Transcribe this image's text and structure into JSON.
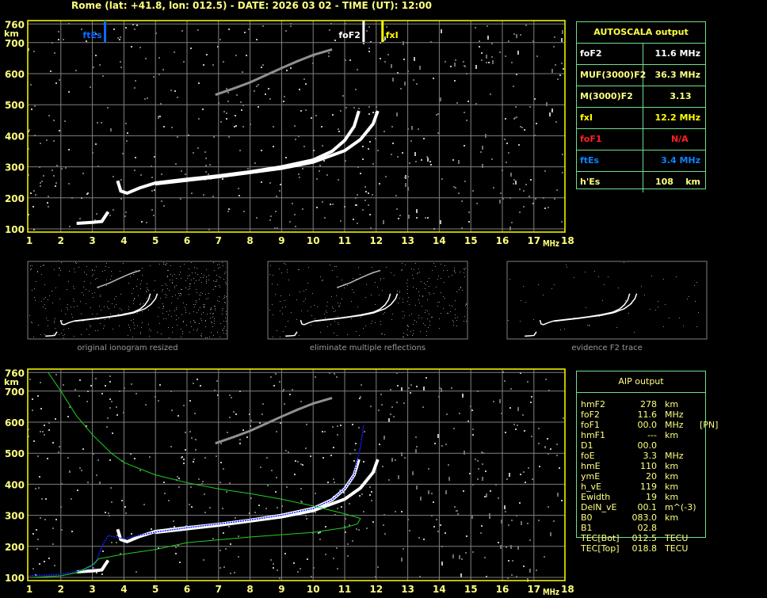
{
  "header": {
    "title": "Rome (lat: +41.8, lon: 012.5) - DATE: 2026 03 02 - TIME (UT): 12:00"
  },
  "colors": {
    "axis": "#ffff00",
    "grid": "#808080",
    "trace": "#ffffff",
    "ftEs": "#0a6cff",
    "foF2": "#ffffff",
    "fxI": "#ffff00",
    "foF1": "#ff2020",
    "profile": "#20d020",
    "aip_trace": "#1020ff",
    "table_border": "#6fe08a"
  },
  "autoscala": {
    "title": "AUTOSCALA output",
    "rows": [
      {
        "label": "foF2",
        "value": "11.6 MHz",
        "color": "#ffffff"
      },
      {
        "label": "MUF(3000)F2",
        "value": "36.3 MHz",
        "color": "#ffff80"
      },
      {
        "label": "M(3000)F2",
        "value": "3.13   ",
        "color": "#ffff80"
      },
      {
        "label": "fxI",
        "value": "12.2 MHz",
        "color": "#ffff00"
      },
      {
        "label": "foF1",
        "value": "N/A    ",
        "color": "#ff2020"
      },
      {
        "label": "ftEs",
        "value": "3.4 MHz",
        "color": "#0a84ff"
      },
      {
        "label": "h'Es",
        "value": "108    km",
        "color": "#ffff80"
      }
    ]
  },
  "aip": {
    "title": "AIP output",
    "rows": [
      {
        "name": "hmF2",
        "value": "278",
        "unit": "km",
        "extra": ""
      },
      {
        "name": "foF2",
        "value": "11.6",
        "unit": "MHz",
        "extra": ""
      },
      {
        "name": "foF1",
        "value": "00.0",
        "unit": "MHz",
        "extra": "[PN]"
      },
      {
        "name": "hmF1",
        "value": "---",
        "unit": "km",
        "extra": ""
      },
      {
        "name": "D1",
        "value": "00.0",
        "unit": "",
        "extra": ""
      },
      {
        "name": "foE",
        "value": "3.3",
        "unit": "MHz",
        "extra": ""
      },
      {
        "name": "hmE",
        "value": "110",
        "unit": "km",
        "extra": ""
      },
      {
        "name": "ymE",
        "value": "20",
        "unit": "km",
        "extra": ""
      },
      {
        "name": "h_vE",
        "value": "119",
        "unit": "km",
        "extra": ""
      },
      {
        "name": "Ewidth",
        "value": "19",
        "unit": "km",
        "extra": ""
      },
      {
        "name": "DelN_vE",
        "value": "00.1",
        "unit": "m^(-3)",
        "extra": ""
      },
      {
        "name": "B0",
        "value": "083.0",
        "unit": "km",
        "extra": ""
      },
      {
        "name": "B1",
        "value": "02.8",
        "unit": "",
        "extra": ""
      },
      {
        "name": "TEC[Bot]",
        "value": "012.5",
        "unit": "TECU",
        "extra": ""
      },
      {
        "name": "TEC[Top]",
        "value": "018.8",
        "unit": "TECU",
        "extra": ""
      }
    ]
  },
  "thumbnails": [
    {
      "label": "original ionogram resized"
    },
    {
      "label": "eliminate multiple reflections"
    },
    {
      "label": "evidence F2 trace"
    }
  ],
  "chart_data": [
    {
      "type": "scatter",
      "xlabel": "MHz",
      "ylabel": "km",
      "xlim": [
        1,
        18
      ],
      "ylim": [
        100,
        760
      ],
      "xticks": [
        "1",
        "2",
        "3",
        "4",
        "5",
        "6",
        "7",
        "8",
        "9",
        "10",
        "11",
        "12",
        "13",
        "14",
        "15",
        "16",
        "17",
        "18"
      ],
      "yticks": [
        "100",
        "200",
        "300",
        "400",
        "500",
        "600",
        "700",
        "760"
      ],
      "grid": true,
      "markers": [
        {
          "label": "ftEs",
          "freq": 3.4,
          "color": "#0a6cff"
        },
        {
          "label": "foF2",
          "freq": 11.6,
          "color": "#ffffff"
        },
        {
          "label": "fxI",
          "freq": 12.2,
          "color": "#ffff00"
        }
      ],
      "series": [
        {
          "kind": "o-trace",
          "points": [
            [
              3.8,
              255
            ],
            [
              3.9,
              222
            ],
            [
              4.1,
              215
            ],
            [
              4.5,
              232
            ],
            [
              5,
              248
            ],
            [
              6,
              260
            ],
            [
              7,
              271
            ],
            [
              8,
              284
            ],
            [
              9,
              300
            ],
            [
              10,
              322
            ],
            [
              10.6,
              350
            ],
            [
              11,
              385
            ],
            [
              11.3,
              430
            ],
            [
              11.45,
              480
            ]
          ]
        },
        {
          "kind": "x-trace",
          "points": [
            [
              5,
              245
            ],
            [
              7,
              268
            ],
            [
              9,
              295
            ],
            [
              10,
              315
            ],
            [
              11,
              352
            ],
            [
              11.5,
              388
            ],
            [
              11.9,
              438
            ],
            [
              12.05,
              480
            ]
          ]
        },
        {
          "kind": "es-trace",
          "points": [
            [
              2.5,
              118
            ],
            [
              3.0,
              121
            ],
            [
              3.3,
              124
            ],
            [
              3.4,
              140
            ],
            [
              3.5,
              155
            ]
          ]
        },
        {
          "kind": "multiple-reflection",
          "points": [
            [
              6.9,
              532
            ],
            [
              7.5,
              553
            ],
            [
              8,
              572
            ],
            [
              8.5,
              595
            ],
            [
              9,
              618
            ],
            [
              9.5,
              640
            ],
            [
              10,
              660
            ],
            [
              10.6,
              678
            ]
          ]
        }
      ]
    },
    {
      "type": "line",
      "xlabel": "MHz",
      "ylabel": "km",
      "xlim": [
        1,
        18
      ],
      "ylim": [
        100,
        760
      ],
      "xticks": [
        "1",
        "2",
        "3",
        "4",
        "5",
        "6",
        "7",
        "8",
        "9",
        "10",
        "11",
        "12",
        "13",
        "14",
        "15",
        "16",
        "17",
        "18"
      ],
      "yticks": [
        "100",
        "200",
        "300",
        "400",
        "500",
        "600",
        "700",
        "760"
      ],
      "grid": true,
      "series": [
        {
          "kind": "o-trace",
          "points": [
            [
              3.8,
              255
            ],
            [
              3.9,
              222
            ],
            [
              4.1,
              215
            ],
            [
              4.5,
              232
            ],
            [
              5,
              248
            ],
            [
              6,
              260
            ],
            [
              7,
              271
            ],
            [
              8,
              284
            ],
            [
              9,
              300
            ],
            [
              10,
              322
            ],
            [
              10.6,
              350
            ],
            [
              11,
              385
            ],
            [
              11.3,
              430
            ],
            [
              11.45,
              480
            ]
          ]
        },
        {
          "kind": "x-trace",
          "points": [
            [
              5,
              245
            ],
            [
              7,
              268
            ],
            [
              9,
              295
            ],
            [
              10,
              315
            ],
            [
              11,
              352
            ],
            [
              11.5,
              388
            ],
            [
              11.9,
              438
            ],
            [
              12.05,
              480
            ]
          ]
        },
        {
          "kind": "es-trace",
          "points": [
            [
              2.5,
              118
            ],
            [
              3.0,
              121
            ],
            [
              3.3,
              124
            ],
            [
              3.4,
              140
            ],
            [
              3.5,
              155
            ]
          ]
        },
        {
          "kind": "multiple-reflection",
          "points": [
            [
              6.9,
              532
            ],
            [
              7.5,
              553
            ],
            [
              8,
              572
            ],
            [
              8.5,
              595
            ],
            [
              9,
              618
            ],
            [
              9.5,
              640
            ],
            [
              10,
              660
            ],
            [
              10.6,
              678
            ]
          ]
        },
        {
          "kind": "aip-fit",
          "points": [
            [
              1,
              105
            ],
            [
              2,
              110
            ],
            [
              2.8,
              125
            ],
            [
              3.1,
              145
            ],
            [
              3.3,
              200
            ],
            [
              3.5,
              235
            ],
            [
              3.8,
              228
            ],
            [
              4,
              225
            ],
            [
              5,
              246
            ],
            [
              6,
              260
            ],
            [
              7,
              272
            ],
            [
              8,
              285
            ],
            [
              9,
              300
            ],
            [
              10,
              322
            ],
            [
              10.6,
              350
            ],
            [
              11,
              385
            ],
            [
              11.3,
              430
            ],
            [
              11.5,
              520
            ],
            [
              11.6,
              590
            ]
          ]
        },
        {
          "kind": "electron-density-profile",
          "points": [
            [
              1.1,
              100
            ],
            [
              2,
              105
            ],
            [
              2.5,
              115
            ],
            [
              3,
              140
            ],
            [
              3.2,
              160
            ],
            [
              4,
              175
            ],
            [
              5,
              190
            ],
            [
              6,
              212
            ],
            [
              8,
              230
            ],
            [
              10,
              245
            ],
            [
              11,
              260
            ],
            [
              11.4,
              272
            ],
            [
              11.5,
              290
            ],
            [
              11,
              305
            ],
            [
              10,
              330
            ],
            [
              9,
              352
            ],
            [
              8,
              370
            ],
            [
              7,
              385
            ],
            [
              6,
              405
            ],
            [
              5,
              430
            ],
            [
              4,
              470
            ],
            [
              3.6,
              500
            ],
            [
              3,
              560
            ],
            [
              2.5,
              620
            ],
            [
              2,
              700
            ],
            [
              1.6,
              760
            ]
          ]
        }
      ]
    }
  ]
}
